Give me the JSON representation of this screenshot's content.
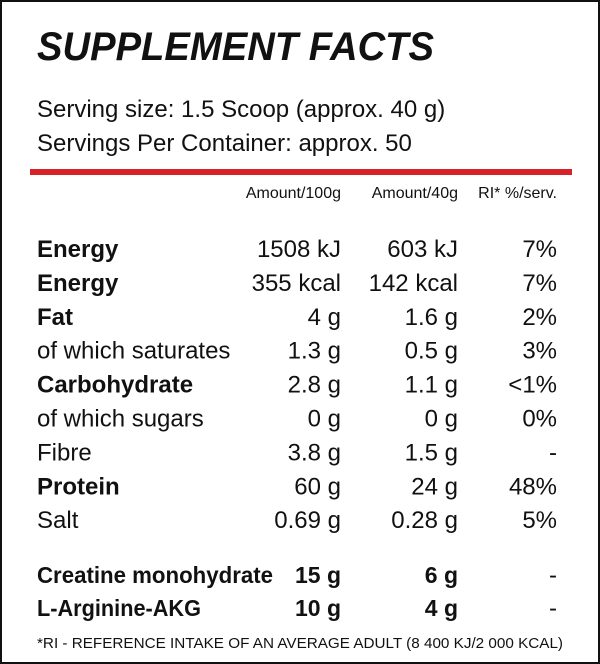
{
  "header": {
    "title": "SUPPLEMENT FACTS",
    "serving_size": "Serving size: 1.5 Scoop (approx. 40 g)",
    "servings_per_container": "Servings Per Container: approx. 50"
  },
  "table": {
    "columns": [
      "Amount/100g",
      "Amount/40g",
      "RI* %/serv."
    ],
    "rows": [
      [
        "Energy",
        "1508 kJ",
        "603 kJ",
        "7%"
      ],
      [
        "Energy",
        "355 kcal",
        "142 kcal",
        "7%"
      ],
      [
        "Fat",
        "4 g",
        "1.6 g",
        "2%"
      ],
      [
        "of which saturates",
        "1.3 g",
        "0.5 g",
        "3%"
      ],
      [
        "Carbohydrate",
        "2.8 g",
        "1.1 g",
        "<1%"
      ],
      [
        "of which sugars",
        "0 g",
        "0 g",
        "0%"
      ],
      [
        "Fibre",
        "3.8 g",
        "1.5 g",
        "-"
      ],
      [
        "Protein",
        "60 g",
        "24 g",
        "48%"
      ],
      [
        "Salt",
        "0.69 g",
        "0.28 g",
        "5%"
      ]
    ],
    "extra_rows": [
      [
        "Creatine monohydrate",
        "15 g",
        "6 g",
        "-"
      ],
      [
        "L-Arginine-AKG",
        "10 g",
        "4 g",
        "-"
      ]
    ]
  },
  "footnote": "*RI - REFERENCE INTAKE OF AN AVERAGE ADULT (8 400 KJ/2 000 KCAL)"
}
